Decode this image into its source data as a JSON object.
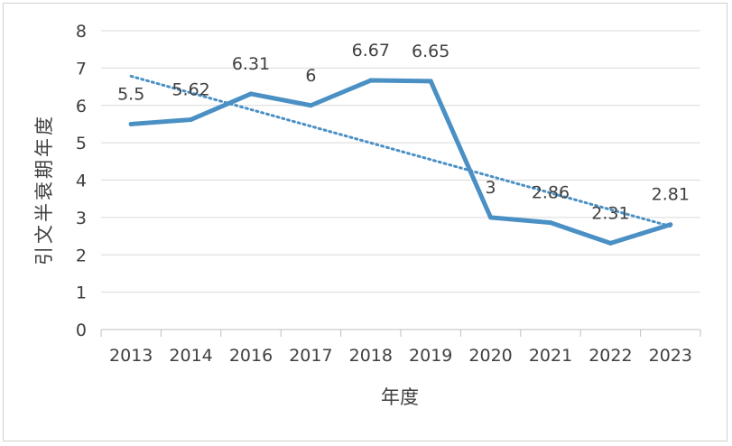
{
  "chart_data": {
    "type": "line",
    "categories": [
      "2013",
      "2014",
      "2016",
      "2017",
      "2018",
      "2019",
      "2020",
      "2021",
      "2022",
      "2023"
    ],
    "series": [
      {
        "values": [
          5.5,
          5.62,
          6.31,
          6,
          6.67,
          6.65,
          3,
          2.86,
          2.31,
          2.81
        ],
        "color": "#4a90c4"
      }
    ],
    "data_labels": [
      "5.5",
      "5.62",
      "6.31",
      "6",
      "6.67",
      "6.65",
      "3",
      "2.86",
      "2.31",
      "2.81"
    ],
    "trendline": {
      "type": "linear",
      "style": "dotted",
      "color": "#4a90c4"
    },
    "xlabel": "年度",
    "ylabel": "引文半衰期年度",
    "ylim": [
      0,
      8
    ],
    "yticks": [
      "0",
      "1",
      "2",
      "3",
      "4",
      "5",
      "6",
      "7",
      "8"
    ],
    "grid": true,
    "legend": "none"
  }
}
